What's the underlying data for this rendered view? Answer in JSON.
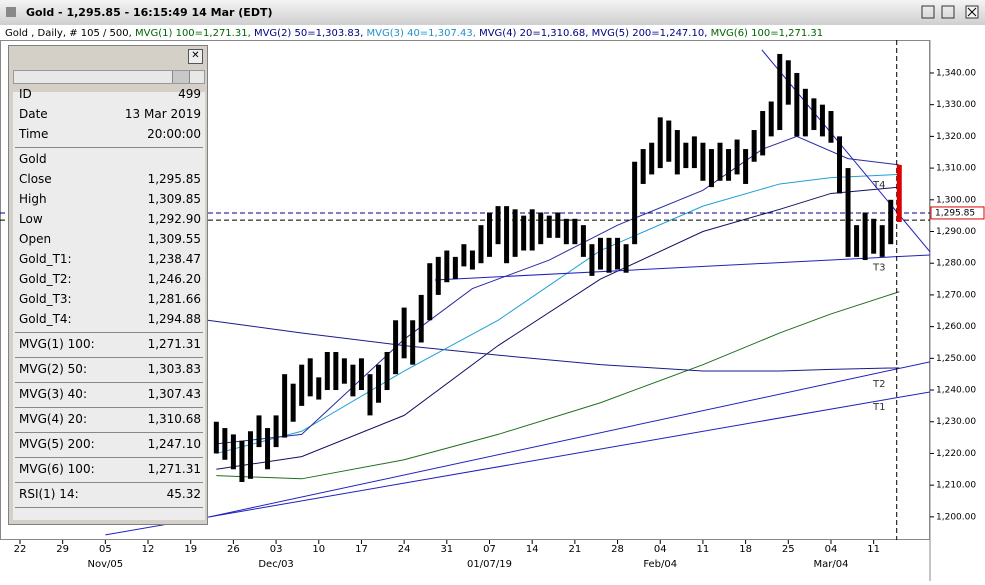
{
  "header": {
    "title": "Gold - 1,295.85 - 16:15:49  14 Mar (EDT)"
  },
  "info_line": [
    "Gold , Daily, # 105 / 500,",
    "MVG(1) 100=1,271.31,",
    "MVG(2) 50=1,303.83,",
    "MVG(3) 40=1,307.43,",
    "MVG(4) 20=1,310.68,",
    "MVG(5) 200=1,247.10,",
    "MVG(6) 100=1,271.31"
  ],
  "panel": {
    "rows": [
      {
        "label": "ID",
        "value": "499"
      },
      {
        "label": "Date",
        "value": "13 Mar 2019"
      },
      {
        "label": "Time",
        "value": "20:00:00"
      },
      {
        "label": "Gold"
      },
      {
        "label": "Close",
        "value": "1,295.85"
      },
      {
        "label": "High",
        "value": "1,309.85"
      },
      {
        "label": "Low",
        "value": "1,292.90"
      },
      {
        "label": "Open",
        "value": "1,309.55"
      },
      {
        "label": "Gold_T1:",
        "value": "1,238.47"
      },
      {
        "label": "Gold_T2:",
        "value": "1,246.20"
      },
      {
        "label": "Gold_T3:",
        "value": "1,281.66"
      },
      {
        "label": "Gold_T4:",
        "value": "1,294.88"
      },
      {
        "label": "MVG(1) 100:",
        "value": "1,271.31"
      },
      {
        "label": "MVG(2) 50:",
        "value": "1,303.83"
      },
      {
        "label": "MVG(3) 40:",
        "value": "1,307.43"
      },
      {
        "label": "MVG(4) 20:",
        "value": "1,310.68"
      },
      {
        "label": "MVG(5) 200:",
        "value": "1,247.10"
      },
      {
        "label": "MVG(6) 100:",
        "value": "1,271.31"
      },
      {
        "label": "RSI(1) 14:",
        "value": "45.32"
      }
    ]
  },
  "chart_data": {
    "type": "ohlc",
    "color": "#000000",
    "last_color": "#dd0000",
    "x": [
      23,
      24,
      25,
      26,
      27,
      28,
      29,
      30,
      31,
      32,
      33,
      34,
      35,
      36,
      37,
      38,
      39,
      40,
      41,
      42,
      43,
      44,
      45,
      46,
      47,
      48,
      49,
      50,
      51,
      52,
      53,
      54,
      55,
      56,
      57,
      58,
      59,
      60,
      61,
      62,
      63,
      64,
      65,
      66,
      67,
      68,
      69,
      70,
      71,
      72,
      73,
      74,
      75,
      76,
      77,
      78,
      79,
      80,
      81,
      82,
      83,
      84,
      85,
      86,
      87,
      88,
      89,
      90,
      91,
      92,
      93,
      94,
      95,
      96,
      97,
      98,
      99,
      100,
      101,
      102,
      103
    ],
    "high": [
      1230,
      1228,
      1226,
      1224,
      1227,
      1232,
      1228,
      1232,
      1245,
      1242,
      1248,
      1250,
      1244,
      1252,
      1252,
      1250,
      1248,
      1250,
      1245,
      1248,
      1252,
      1262,
      1266,
      1262,
      1270,
      1280,
      1282,
      1284,
      1282,
      1286,
      1284,
      1292,
      1296,
      1298,
      1298,
      1297,
      1295,
      1297,
      1296,
      1295,
      1296,
      1294,
      1294,
      1292,
      1286,
      1288,
      1288,
      1288,
      1286,
      1312,
      1316,
      1318,
      1326,
      1325,
      1322,
      1318,
      1320,
      1318,
      1316,
      1318,
      1316,
      1319,
      1316,
      1322,
      1328,
      1331,
      1346,
      1344,
      1340,
      1335,
      1332,
      1330,
      1328,
      1320,
      1310,
      1292,
      1296,
      1294,
      1292,
      1300,
      1311
    ],
    "low": [
      1220,
      1218,
      1215,
      1211,
      1212,
      1222,
      1215,
      1222,
      1225,
      1230,
      1235,
      1238,
      1237,
      1240,
      1240,
      1242,
      1238,
      1240,
      1232,
      1236,
      1240,
      1245,
      1250,
      1248,
      1255,
      1262,
      1270,
      1274,
      1275,
      1279,
      1278,
      1280,
      1282,
      1286,
      1280,
      1282,
      1284,
      1284,
      1286,
      1288,
      1288,
      1286,
      1286,
      1282,
      1276,
      1278,
      1277,
      1278,
      1277,
      1286,
      1305,
      1308,
      1310,
      1312,
      1308,
      1310,
      1310,
      1306,
      1304,
      1306,
      1306,
      1308,
      1305,
      1312,
      1314,
      1320,
      1322,
      1330,
      1320,
      1320,
      1322,
      1320,
      1318,
      1302,
      1282,
      1282,
      1281,
      1283,
      1282,
      1286,
      1293
    ],
    "lines": [
      {
        "color": "#1e6e1e",
        "x": [
          23,
          33,
          45,
          56,
          68,
          80,
          89,
          95,
          103
        ],
        "values": [
          1213,
          1212,
          1218,
          1226,
          1236,
          1248,
          1258,
          1264,
          1271
        ]
      },
      {
        "color": "#1a1a8a",
        "x": [
          22,
          33,
          45,
          56,
          68,
          80,
          89,
          95,
          103
        ],
        "values": [
          1262,
          1258,
          1254,
          1251,
          1248,
          1246,
          1246,
          1246.5,
          1247
        ]
      },
      {
        "color": "#101060",
        "x": [
          23,
          33,
          45,
          56,
          68,
          80,
          89,
          95,
          103
        ],
        "values": [
          1215,
          1219,
          1232,
          1254,
          1275,
          1290,
          1297,
          1302,
          1304
        ]
      },
      {
        "color": "#1ea0d8",
        "x": [
          23,
          33,
          45,
          56,
          68,
          80,
          89,
          95,
          103
        ],
        "values": [
          1220,
          1227,
          1246,
          1262,
          1284,
          1298,
          1305,
          1307,
          1308
        ]
      },
      {
        "color": "#2a2aa0",
        "x": [
          23,
          33,
          45,
          53,
          62,
          70,
          80,
          87,
          91,
          97,
          103
        ],
        "values": [
          1223,
          1226,
          1256,
          1272,
          1281,
          1292,
          1303,
          1316,
          1320,
          1313,
          1311
        ]
      }
    ],
    "trendlines": [
      {
        "name": "T1",
        "color": "#2020c0",
        "x": [
          10,
          106.6
        ],
        "values": [
          1194.3,
          1239.4
        ]
      },
      {
        "name": "T2",
        "color": "#2020c0",
        "x": [
          22.2,
          106.6
        ],
        "values": [
          1200,
          1248.9
        ]
      },
      {
        "name": "T3",
        "color": "#2020c0",
        "x": [
          48.6,
          106.6
        ],
        "values": [
          1274.7,
          1282.6
        ]
      },
      {
        "name": "T4",
        "color": "#2020c0",
        "x": [
          86.9,
          106.6
        ],
        "values": [
          1347.3,
          1283.6
        ]
      }
    ],
    "price_line": {
      "value": 1295.85,
      "label": "1,295.85"
    },
    "ref_line": 1293.6,
    "cursor_x": 102.7,
    "xlim": [
      -2.34,
      106.6
    ],
    "ylim": [
      1192.7,
      1350.4
    ],
    "xticks": [
      {
        "value": 0,
        "label": "22"
      },
      {
        "value": 5,
        "label": "29"
      },
      {
        "value": 10,
        "label": "05"
      },
      {
        "value": 15,
        "label": "12"
      },
      {
        "value": 20,
        "label": "19"
      },
      {
        "value": 25,
        "label": "26"
      },
      {
        "value": 30,
        "label": "03"
      },
      {
        "value": 35,
        "label": "10"
      },
      {
        "value": 40,
        "label": "17"
      },
      {
        "value": 45,
        "label": "24"
      },
      {
        "value": 50,
        "label": "31"
      },
      {
        "value": 55,
        "label": "07"
      },
      {
        "value": 60,
        "label": "14"
      },
      {
        "value": 65,
        "label": "21"
      },
      {
        "value": 70,
        "label": "28"
      },
      {
        "value": 75,
        "label": "04"
      },
      {
        "value": 80,
        "label": "11"
      },
      {
        "value": 85,
        "label": "18"
      },
      {
        "value": 90,
        "label": "25"
      },
      {
        "value": 95,
        "label": "04"
      },
      {
        "value": 100,
        "label": "11"
      }
    ],
    "xticks2": [
      {
        "value": 10,
        "label": "Nov/05"
      },
      {
        "value": 30,
        "label": "Dec/03"
      },
      {
        "value": 55,
        "label": "01/07/19"
      },
      {
        "value": 75,
        "label": "Feb/04"
      },
      {
        "value": 95,
        "label": "Mar/04"
      }
    ],
    "yticks": [
      {
        "value": 1200,
        "label": "1,200.00"
      },
      {
        "value": 1210,
        "label": "1,210.00"
      },
      {
        "value": 1220,
        "label": "1,220.00"
      },
      {
        "value": 1230,
        "label": "1,230.00"
      },
      {
        "value": 1240,
        "label": "1,240.00"
      },
      {
        "value": 1250,
        "label": "1,250.00"
      },
      {
        "value": 1260,
        "label": "1,260.00"
      },
      {
        "value": 1270,
        "label": "1,270.00"
      },
      {
        "value": 1280,
        "label": "1,280.00"
      },
      {
        "value": 1290,
        "label": "1,290.00"
      },
      {
        "value": 1300,
        "label": "1,300.00"
      },
      {
        "value": 1310,
        "label": "1,310.00"
      },
      {
        "value": 1320,
        "label": "1,320.00"
      },
      {
        "value": 1330,
        "label": "1,330.00"
      },
      {
        "value": 1340,
        "label": "1,340.00"
      }
    ]
  }
}
